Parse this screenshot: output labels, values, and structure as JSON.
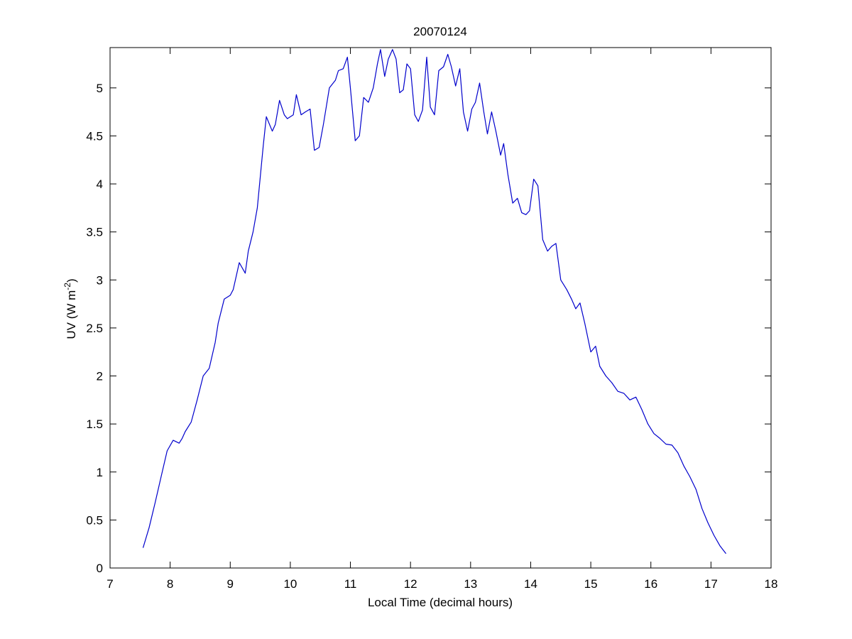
{
  "chart_data": {
    "type": "line",
    "title": "20070124",
    "xlabel": "Local Time (decimal hours)",
    "ylabel": {
      "text": "UV (W m",
      "superscript": "-2",
      "close": ")"
    },
    "xlim": [
      7,
      18
    ],
    "ylim": [
      0,
      5.42
    ],
    "xticks": [
      7,
      8,
      9,
      10,
      11,
      12,
      13,
      14,
      15,
      16,
      17,
      18
    ],
    "yticks": [
      0,
      0.5,
      1,
      1.5,
      2,
      2.5,
      3,
      3.5,
      4,
      4.5,
      5
    ],
    "grid": false,
    "series": [
      {
        "color": "#0000cc",
        "x": [
          7.55,
          7.65,
          7.75,
          7.85,
          7.95,
          8.05,
          8.15,
          8.2,
          8.25,
          8.35,
          8.45,
          8.55,
          8.65,
          8.75,
          8.8,
          8.9,
          9.0,
          9.05,
          9.15,
          9.25,
          9.3,
          9.38,
          9.45,
          9.55,
          9.6,
          9.7,
          9.75,
          9.82,
          9.9,
          9.95,
          10.05,
          10.1,
          10.18,
          10.25,
          10.33,
          10.4,
          10.48,
          10.55,
          10.65,
          10.75,
          10.8,
          10.88,
          10.95,
          11.0,
          11.08,
          11.15,
          11.22,
          11.3,
          11.38,
          11.45,
          11.5,
          11.57,
          11.63,
          11.7,
          11.76,
          11.82,
          11.88,
          11.94,
          12.0,
          12.07,
          12.13,
          12.2,
          12.27,
          12.33,
          12.4,
          12.47,
          12.55,
          12.62,
          12.68,
          12.75,
          12.82,
          12.88,
          12.95,
          13.02,
          13.08,
          13.15,
          13.22,
          13.28,
          13.35,
          13.42,
          13.5,
          13.55,
          13.62,
          13.7,
          13.78,
          13.85,
          13.92,
          13.98,
          14.05,
          14.12,
          14.2,
          14.28,
          14.35,
          14.42,
          14.5,
          14.6,
          14.68,
          14.75,
          14.82,
          14.9,
          15.0,
          15.08,
          15.15,
          15.25,
          15.35,
          15.45,
          15.55,
          15.65,
          15.75,
          15.85,
          15.95,
          16.05,
          16.15,
          16.25,
          16.35,
          16.45,
          16.55,
          16.65,
          16.75,
          16.85,
          16.95,
          17.05,
          17.15,
          17.25
        ],
        "y": [
          0.21,
          0.42,
          0.68,
          0.95,
          1.22,
          1.33,
          1.3,
          1.35,
          1.42,
          1.52,
          1.75,
          2.0,
          2.08,
          2.35,
          2.55,
          2.8,
          2.84,
          2.9,
          3.18,
          3.07,
          3.3,
          3.5,
          3.75,
          4.4,
          4.7,
          4.55,
          4.62,
          4.87,
          4.72,
          4.68,
          4.72,
          4.93,
          4.72,
          4.75,
          4.78,
          4.35,
          4.38,
          4.62,
          5.0,
          5.08,
          5.18,
          5.2,
          5.32,
          5.0,
          4.45,
          4.5,
          4.9,
          4.85,
          5.0,
          5.25,
          5.4,
          5.12,
          5.3,
          5.4,
          5.3,
          4.95,
          4.98,
          5.25,
          5.2,
          4.72,
          4.65,
          4.77,
          5.32,
          4.8,
          4.72,
          5.18,
          5.22,
          5.35,
          5.22,
          5.02,
          5.2,
          4.75,
          4.55,
          4.78,
          4.85,
          5.05,
          4.75,
          4.52,
          4.75,
          4.55,
          4.3,
          4.42,
          4.1,
          3.8,
          3.85,
          3.7,
          3.68,
          3.72,
          4.05,
          3.98,
          3.42,
          3.3,
          3.35,
          3.38,
          3.0,
          2.9,
          2.8,
          2.7,
          2.76,
          2.55,
          2.25,
          2.31,
          2.1,
          2.0,
          1.93,
          1.84,
          1.82,
          1.75,
          1.78,
          1.65,
          1.5,
          1.4,
          1.35,
          1.29,
          1.28,
          1.2,
          1.06,
          0.95,
          0.82,
          0.62,
          0.47,
          0.34,
          0.23,
          0.15
        ]
      }
    ]
  }
}
